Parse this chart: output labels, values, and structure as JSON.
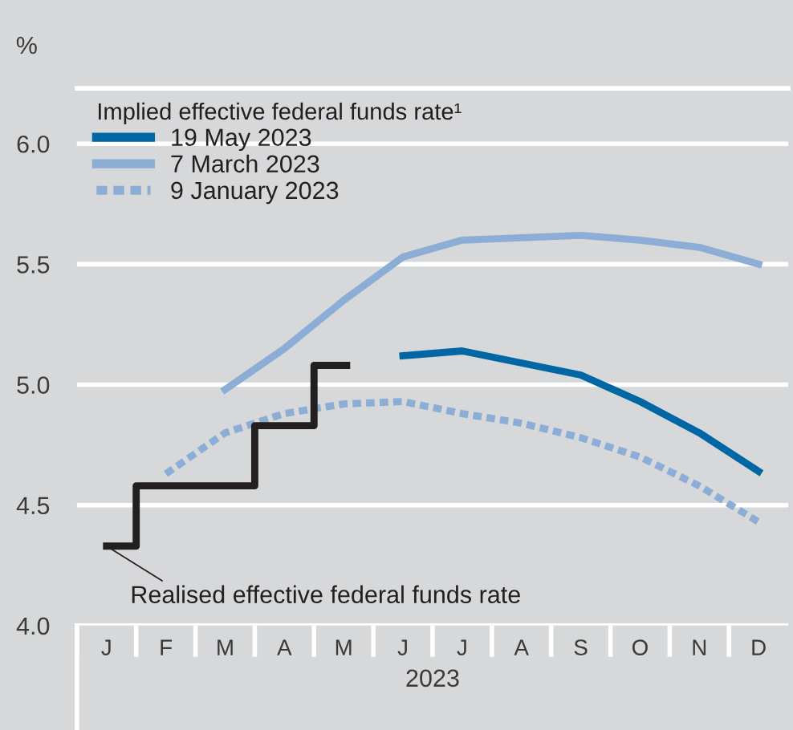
{
  "chart_data": {
    "type": "line",
    "ylabel": "%",
    "xlabel": "2023",
    "legend_title": "Implied effective federal funds rate¹",
    "categories": [
      "J",
      "F",
      "M",
      "A",
      "M",
      "J",
      "J",
      "A",
      "S",
      "O",
      "N",
      "D"
    ],
    "ylim": [
      4.0,
      6.23
    ],
    "yticks": [
      {
        "value": 4.0,
        "label": "4.0"
      },
      {
        "value": 4.5,
        "label": "4.5"
      },
      {
        "value": 5.0,
        "label": "5.0"
      },
      {
        "value": 5.5,
        "label": "5.5"
      },
      {
        "value": 6.0,
        "label": "6.0"
      }
    ],
    "grid": "y",
    "legend": "top left",
    "marker": "none",
    "series": [
      {
        "name": "19 May 2023",
        "color": "#0066a4",
        "line_style": "solid",
        "values": [
          null,
          null,
          null,
          null,
          null,
          5.12,
          5.14,
          5.09,
          5.04,
          4.93,
          4.8,
          4.64
        ]
      },
      {
        "name": "7 March 2023",
        "color": "#8badd6",
        "line_style": "solid",
        "values": [
          null,
          null,
          4.98,
          5.15,
          5.35,
          5.53,
          5.6,
          5.61,
          5.62,
          5.6,
          5.57,
          5.5
        ]
      },
      {
        "name": "9 January 2023",
        "color": "#8badd6",
        "line_style": "dotted",
        "values": [
          null,
          4.63,
          4.8,
          4.88,
          4.92,
          4.93,
          4.88,
          4.84,
          4.78,
          4.7,
          4.58,
          4.43
        ]
      },
      {
        "type": "step",
        "color": "#231f20",
        "line_style": "solid",
        "values": [
          4.33,
          4.58,
          4.58,
          4.83,
          5.08,
          null,
          null,
          null,
          null,
          null,
          null,
          null
        ]
      }
    ],
    "annotations": [
      {
        "text": "Realised effective federal funds rate",
        "x": "J",
        "y": 4.33
      }
    ]
  }
}
